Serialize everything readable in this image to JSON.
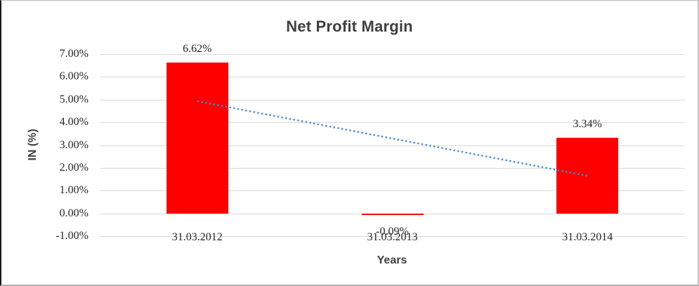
{
  "chart_data": {
    "type": "bar",
    "title": "Net Profit Margin",
    "xlabel": "Years",
    "ylabel": "IN (%)",
    "categories": [
      "31.03.2012",
      "31.03.2013",
      "31.03.2014"
    ],
    "values": [
      6.62,
      -0.09,
      3.34
    ],
    "data_labels": [
      "6.62%",
      "-0.09%",
      "3.34%"
    ],
    "yticks": [
      {
        "value": 7,
        "label": "7.00%"
      },
      {
        "value": 6,
        "label": "6.00%"
      },
      {
        "value": 5,
        "label": "5.00%"
      },
      {
        "value": 4,
        "label": "4.00%"
      },
      {
        "value": 3,
        "label": "3.00%"
      },
      {
        "value": 2,
        "label": "2.00%"
      },
      {
        "value": 1,
        "label": "1.00%"
      },
      {
        "value": 0,
        "label": "0.00%"
      },
      {
        "value": -1,
        "label": "-1.00%"
      }
    ],
    "ylim": [
      -1,
      7
    ],
    "grid": true,
    "legend": "none",
    "bar_color": "#FF0000",
    "gridline_color": "#D9D9D9",
    "text_color": "#262626",
    "title_color": "#3F3F3F",
    "trendline": {
      "type": "linear",
      "style": "dotted",
      "color": "#4E88C7",
      "start_value": 4.93,
      "end_value": 1.65
    }
  }
}
